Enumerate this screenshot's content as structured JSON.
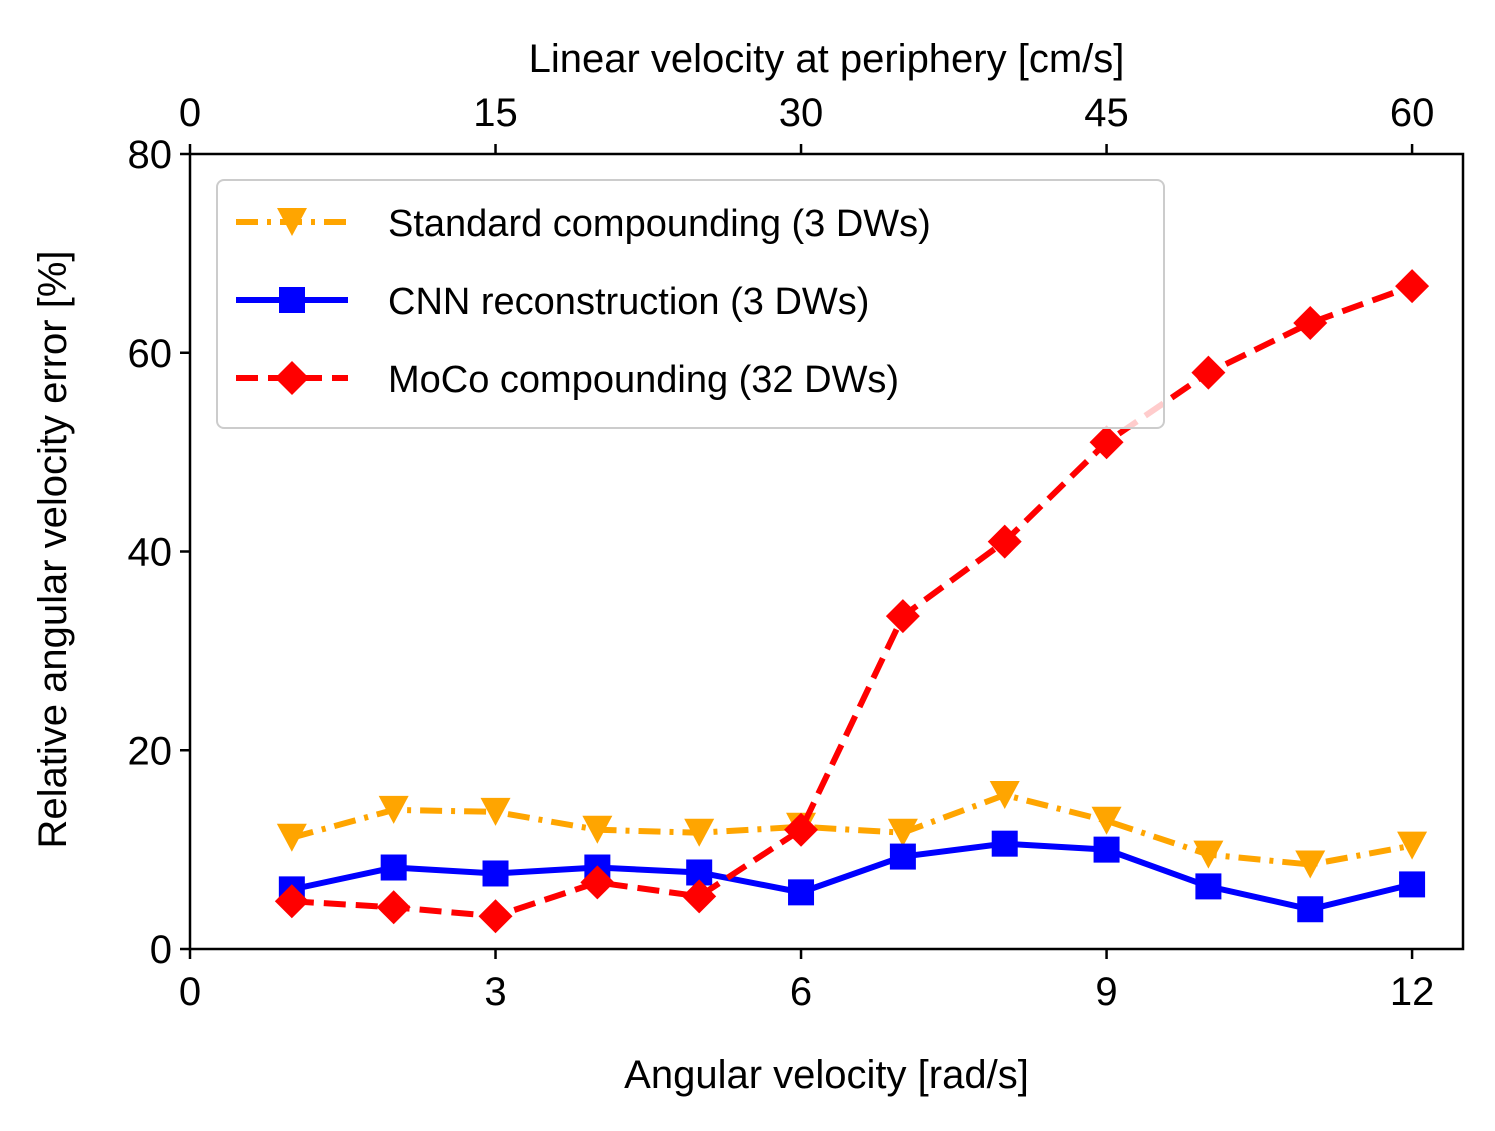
{
  "chart_data": {
    "type": "line",
    "title": "",
    "xlabel": "Angular velocity [rad/s]",
    "ylabel": "Relative angular velocity error [%]",
    "x2label": "Linear velocity at periphery [cm/s]",
    "xlim": [
      0,
      12.5
    ],
    "ylim": [
      0,
      80
    ],
    "xticks": [
      0,
      3,
      6,
      9,
      12
    ],
    "xtick_labels": [
      "0",
      "3",
      "6",
      "9",
      "12"
    ],
    "yticks": [
      0,
      20,
      40,
      60,
      80
    ],
    "ytick_labels": [
      "0",
      "20",
      "40",
      "60",
      "80"
    ],
    "x2ticks": [
      0,
      3,
      6,
      9,
      12
    ],
    "x2tick_labels": [
      "0",
      "15",
      "30",
      "45",
      "60"
    ],
    "legend_position": "upper-left",
    "grid": false,
    "x": [
      1,
      2,
      3,
      4,
      5,
      6,
      7,
      8,
      9,
      10,
      11,
      12
    ],
    "series": [
      {
        "name": "Standard compounding (3 DWs)",
        "color": "#ffa500",
        "marker": "triangle-down",
        "linestyle": "dashdot",
        "values": [
          11.2,
          14.0,
          13.8,
          12.0,
          11.7,
          12.3,
          11.7,
          15.5,
          12.9,
          9.5,
          8.5,
          10.4
        ]
      },
      {
        "name": "CNN reconstruction (3 DWs)",
        "color": "#0000ff",
        "marker": "square",
        "linestyle": "solid",
        "values": [
          6.0,
          8.2,
          7.6,
          8.2,
          7.7,
          5.7,
          9.3,
          10.6,
          10.0,
          6.3,
          4.0,
          6.5
        ]
      },
      {
        "name": "MoCo compounding (32 DWs)",
        "color": "#ff0000",
        "marker": "diamond",
        "linestyle": "dashed",
        "values": [
          4.8,
          4.2,
          3.3,
          6.7,
          5.3,
          12.0,
          33.5,
          41.0,
          51.0,
          58.0,
          63.0,
          66.7
        ]
      }
    ]
  }
}
